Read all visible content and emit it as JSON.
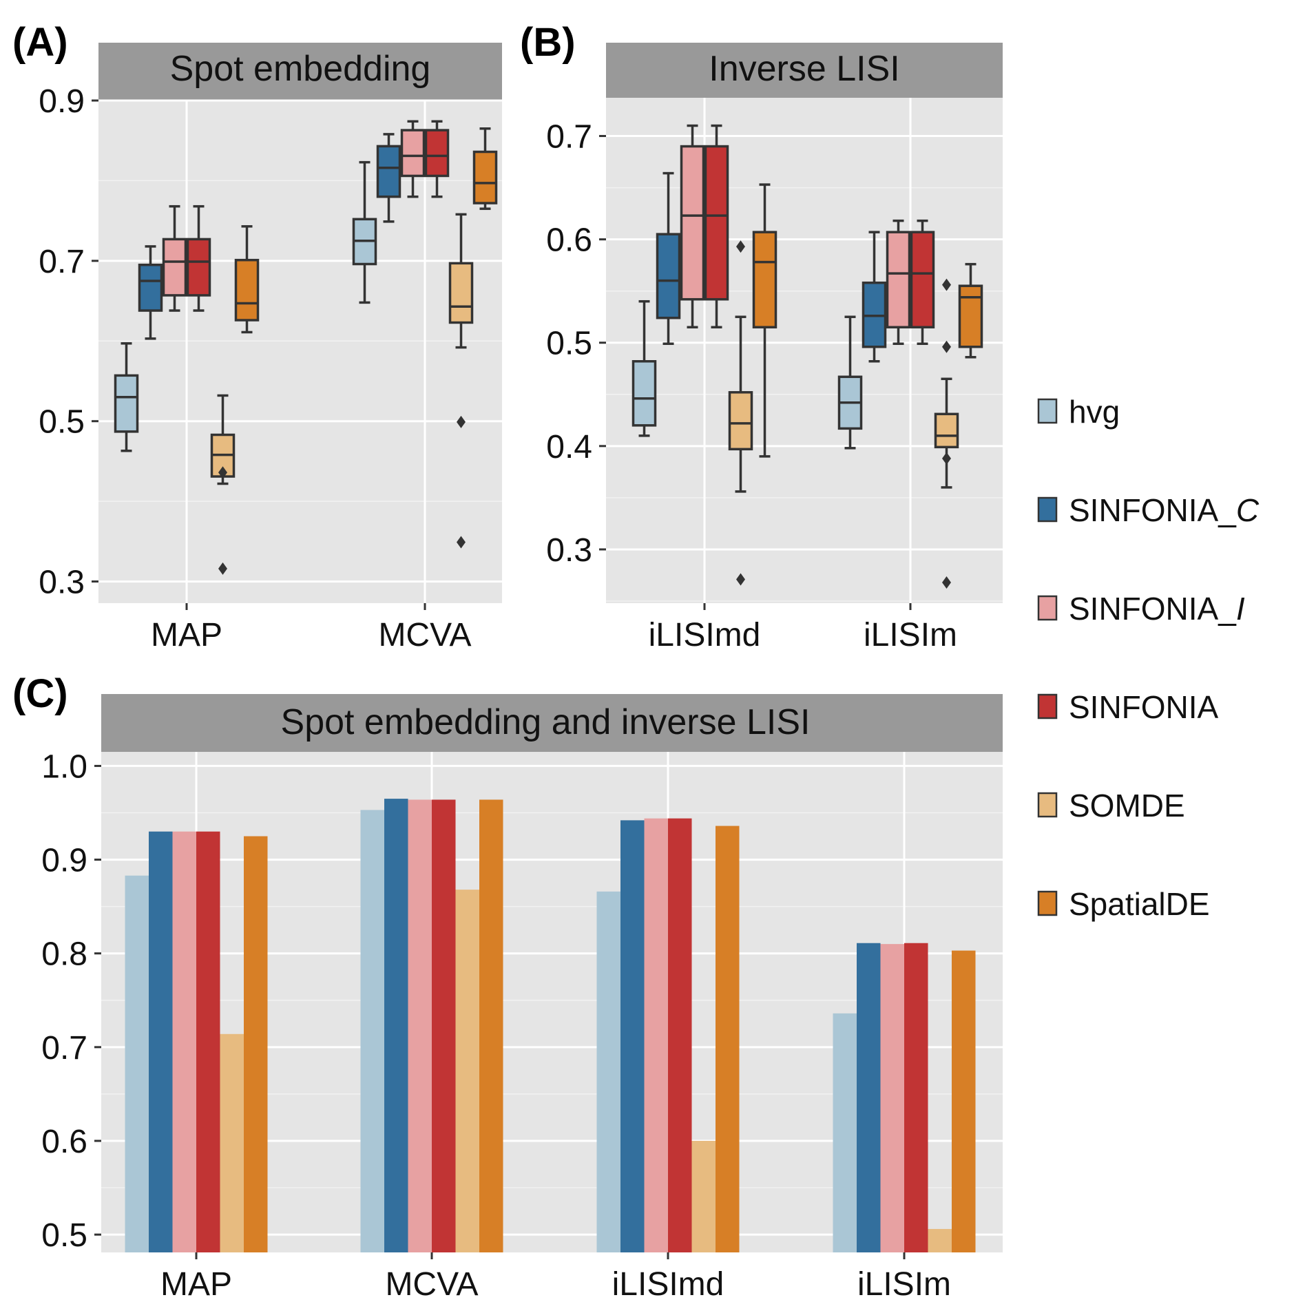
{
  "colors": {
    "hvg": "#aac6d5",
    "SINFONIA_C": "#336f9d",
    "SINFONIA_I": "#e7a1a2",
    "SINFONIA": "#c13434",
    "SOMDE": "#e7bb80",
    "SpatialDE": "#d77f26",
    "panel_bg": "#e5e5e5",
    "strip_bg": "#999999",
    "box_outline": "#333333"
  },
  "legend": {
    "items": [
      {
        "key": "hvg",
        "label": "hvg",
        "italic_suffix": ""
      },
      {
        "key": "SINFONIA_C",
        "label": "SINFONIA_",
        "italic_suffix": "C"
      },
      {
        "key": "SINFONIA_I",
        "label": "SINFONIA_",
        "italic_suffix": "I"
      },
      {
        "key": "SINFONIA",
        "label": "SINFONIA",
        "italic_suffix": ""
      },
      {
        "key": "SOMDE",
        "label": "SOMDE",
        "italic_suffix": ""
      },
      {
        "key": "SpatialDE",
        "label": "SpatialDE",
        "italic_suffix": ""
      }
    ]
  },
  "chart_data": [
    {
      "panel": "(A)",
      "type": "box",
      "title": "Spot embedding",
      "categories": [
        "MAP",
        "MCVA"
      ],
      "series_order": [
        "hvg",
        "SINFONIA_C",
        "SINFONIA_I",
        "SINFONIA",
        "SOMDE",
        "SpatialDE"
      ],
      "ylim": [
        0.273,
        0.9
      ],
      "yticks": [
        0.3,
        0.5,
        0.7,
        0.9
      ],
      "ytick_labels": [
        "0.3",
        "0.5",
        "0.7",
        "0.9"
      ],
      "boxes": {
        "MAP": [
          {
            "min": 0.463,
            "q1": 0.487,
            "med": 0.53,
            "q3": 0.557,
            "max": 0.597,
            "outliers": []
          },
          {
            "min": 0.603,
            "q1": 0.638,
            "med": 0.675,
            "q3": 0.695,
            "max": 0.718,
            "outliers": []
          },
          {
            "min": 0.638,
            "q1": 0.657,
            "med": 0.699,
            "q3": 0.727,
            "max": 0.768,
            "outliers": []
          },
          {
            "min": 0.638,
            "q1": 0.657,
            "med": 0.699,
            "q3": 0.727,
            "max": 0.768,
            "outliers": []
          },
          {
            "min": 0.422,
            "q1": 0.431,
            "med": 0.458,
            "q3": 0.483,
            "max": 0.532,
            "outliers": [
              0.436,
              0.316
            ]
          },
          {
            "min": 0.611,
            "q1": 0.626,
            "med": 0.647,
            "q3": 0.701,
            "max": 0.743,
            "outliers": []
          }
        ],
        "MCVA": [
          {
            "min": 0.648,
            "q1": 0.696,
            "med": 0.725,
            "q3": 0.752,
            "max": 0.823,
            "outliers": []
          },
          {
            "min": 0.749,
            "q1": 0.78,
            "med": 0.816,
            "q3": 0.843,
            "max": 0.858,
            "outliers": []
          },
          {
            "min": 0.78,
            "q1": 0.806,
            "med": 0.831,
            "q3": 0.863,
            "max": 0.874,
            "outliers": []
          },
          {
            "min": 0.78,
            "q1": 0.806,
            "med": 0.831,
            "q3": 0.863,
            "max": 0.874,
            "outliers": []
          },
          {
            "min": 0.592,
            "q1": 0.623,
            "med": 0.643,
            "q3": 0.697,
            "max": 0.758,
            "outliers": [
              0.499,
              0.349
            ]
          },
          {
            "min": 0.765,
            "q1": 0.772,
            "med": 0.797,
            "q3": 0.836,
            "max": 0.865,
            "outliers": []
          }
        ]
      }
    },
    {
      "panel": "(B)",
      "type": "box",
      "title": "Inverse LISI",
      "categories": [
        "iLISImd",
        "iLISIm"
      ],
      "series_order": [
        "hvg",
        "SINFONIA_C",
        "SINFONIA_I",
        "SINFONIA",
        "SOMDE",
        "SpatialDE"
      ],
      "ylim": [
        0.248,
        0.737
      ],
      "yticks": [
        0.3,
        0.4,
        0.5,
        0.6,
        0.7
      ],
      "ytick_labels": [
        "0.3",
        "0.4",
        "0.5",
        "0.6",
        "0.7"
      ],
      "boxes": {
        "iLISImd": [
          {
            "min": 0.41,
            "q1": 0.42,
            "med": 0.446,
            "q3": 0.482,
            "max": 0.54,
            "outliers": []
          },
          {
            "min": 0.499,
            "q1": 0.524,
            "med": 0.56,
            "q3": 0.605,
            "max": 0.664,
            "outliers": []
          },
          {
            "min": 0.515,
            "q1": 0.542,
            "med": 0.623,
            "q3": 0.69,
            "max": 0.71,
            "outliers": []
          },
          {
            "min": 0.515,
            "q1": 0.542,
            "med": 0.623,
            "q3": 0.69,
            "max": 0.71,
            "outliers": []
          },
          {
            "min": 0.356,
            "q1": 0.397,
            "med": 0.422,
            "q3": 0.452,
            "max": 0.525,
            "outliers": [
              0.593,
              0.271
            ]
          },
          {
            "min": 0.39,
            "q1": 0.515,
            "med": 0.578,
            "q3": 0.607,
            "max": 0.653,
            "outliers": []
          }
        ],
        "iLISIm": [
          {
            "min": 0.398,
            "q1": 0.417,
            "med": 0.442,
            "q3": 0.467,
            "max": 0.525,
            "outliers": []
          },
          {
            "min": 0.482,
            "q1": 0.496,
            "med": 0.526,
            "q3": 0.558,
            "max": 0.607,
            "outliers": []
          },
          {
            "min": 0.499,
            "q1": 0.515,
            "med": 0.567,
            "q3": 0.607,
            "max": 0.618,
            "outliers": []
          },
          {
            "min": 0.499,
            "q1": 0.515,
            "med": 0.567,
            "q3": 0.607,
            "max": 0.618,
            "outliers": []
          },
          {
            "min": 0.36,
            "q1": 0.399,
            "med": 0.41,
            "q3": 0.431,
            "max": 0.465,
            "outliers": [
              0.556,
              0.496,
              0.388,
              0.268
            ]
          },
          {
            "min": 0.486,
            "q1": 0.496,
            "med": 0.544,
            "q3": 0.555,
            "max": 0.576,
            "outliers": []
          }
        ]
      }
    },
    {
      "panel": "(C)",
      "type": "bar",
      "title": "Spot embedding and inverse LISI",
      "categories": [
        "MAP",
        "MCVA",
        "iLISImd",
        "iLISIm"
      ],
      "ylim": [
        0.481,
        1.015
      ],
      "yticks": [
        0.5,
        0.6,
        0.7,
        0.8,
        0.9,
        1.0
      ],
      "ytick_labels": [
        "0.5",
        "0.6",
        "0.7",
        "0.8",
        "0.9",
        "1.0"
      ],
      "series": [
        {
          "name": "hvg",
          "values": [
            0.883,
            0.953,
            0.866,
            0.736
          ]
        },
        {
          "name": "SINFONIA_C",
          "values": [
            0.93,
            0.965,
            0.942,
            0.811
          ]
        },
        {
          "name": "SINFONIA_I",
          "values": [
            0.93,
            0.964,
            0.944,
            0.81
          ]
        },
        {
          "name": "SINFONIA",
          "values": [
            0.93,
            0.964,
            0.944,
            0.811
          ]
        },
        {
          "name": "SOMDE",
          "values": [
            0.714,
            0.868,
            0.6,
            0.506
          ]
        },
        {
          "name": "SpatialDE",
          "values": [
            0.925,
            0.964,
            0.936,
            0.803
          ]
        }
      ]
    }
  ]
}
